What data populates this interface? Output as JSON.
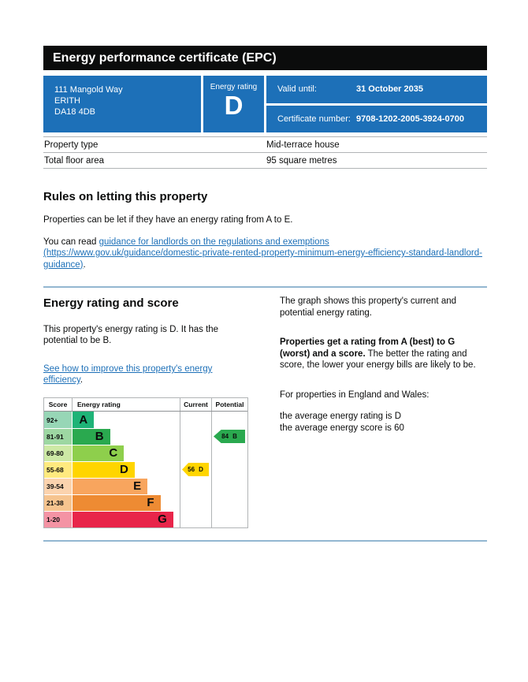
{
  "page": {
    "title": "Energy performance certificate (EPC)"
  },
  "summary": {
    "address_lines": [
      "111 Mangold Way",
      "ERITH",
      "DA18 4DB"
    ],
    "energy_rating_label": "Energy rating",
    "energy_rating_value": "D",
    "valid_until_label": "Valid until:",
    "valid_until_value": "31 October 2035",
    "certificate_number_label": "Certificate number:",
    "certificate_number_value": "9708-1202-2005-3924-0700"
  },
  "property_table": {
    "rows": [
      {
        "label": "Property type",
        "value": "Mid-terrace house"
      },
      {
        "label": "Total floor area",
        "value": "95 square metres"
      }
    ]
  },
  "rules": {
    "heading": "Rules on letting this property",
    "para1": "Properties can be let if they have an energy rating from A to E.",
    "para2_prefix": "You can read ",
    "para2_link_text": "guidance for landlords on the regulations and exemptions (https://www.gov.uk/guidance/domestic-private-rented-property-minimum-energy-efficiency-standard-landlord-guidance)",
    "para2_suffix": "."
  },
  "rating_section": {
    "heading": "Energy rating and score",
    "intro_text": "This property's energy rating is D. It has the potential to be B.",
    "improve_link_text": "See how to improve this property's energy efficiency",
    "improve_link_suffix": ".",
    "graph_para": "The graph shows this property's current and potential energy rating.",
    "ratings_bold": "Properties get a rating from A (best) to G (worst) and a score.",
    "ratings_rest": " The better the rating and score, the lower your energy bills are likely to be.",
    "averages_intro": "For properties in England and Wales:",
    "average_rating_line": "the average energy rating is D",
    "average_score_line": "the average energy score is 60"
  },
  "chart_data": {
    "type": "epc-band-chart",
    "title": "Energy rating and score",
    "column_headers": {
      "score": "Score",
      "rating": "Energy rating",
      "current": "Current",
      "potential": "Potential"
    },
    "bands": [
      {
        "score_range": "92+",
        "letter": "A",
        "color": "#1eb377",
        "score_tint": "#97d6b6",
        "bar_pct": 20
      },
      {
        "score_range": "81-91",
        "letter": "B",
        "color": "#2aa94f",
        "score_tint": "#9dd7a2",
        "bar_pct": 35
      },
      {
        "score_range": "69-80",
        "letter": "C",
        "color": "#8ecf4c",
        "score_tint": "#cde9a5",
        "bar_pct": 48
      },
      {
        "score_range": "55-68",
        "letter": "D",
        "color": "#ffd500",
        "score_tint": "#ffea7f",
        "bar_pct": 58
      },
      {
        "score_range": "39-54",
        "letter": "E",
        "color": "#f8a55e",
        "score_tint": "#fbd3ae",
        "bar_pct": 70
      },
      {
        "score_range": "21-38",
        "letter": "F",
        "color": "#ee8b33",
        "score_tint": "#f6c48f",
        "bar_pct": 82
      },
      {
        "score_range": "1-20",
        "letter": "G",
        "color": "#e8254a",
        "score_tint": "#f493a4",
        "bar_pct": 94
      }
    ],
    "current": {
      "score": 56,
      "letter": "D",
      "band_index": 3,
      "arrow_color": "#ffd500"
    },
    "potential": {
      "score": 84,
      "letter": "B",
      "band_index": 1,
      "arrow_color": "#2aa94f"
    }
  },
  "colors": {
    "brand_blue": "#1d70b8",
    "header_black": "#0b0c0c",
    "link_blue": "#1d70b8",
    "divider_blue": "#93b7d1"
  }
}
